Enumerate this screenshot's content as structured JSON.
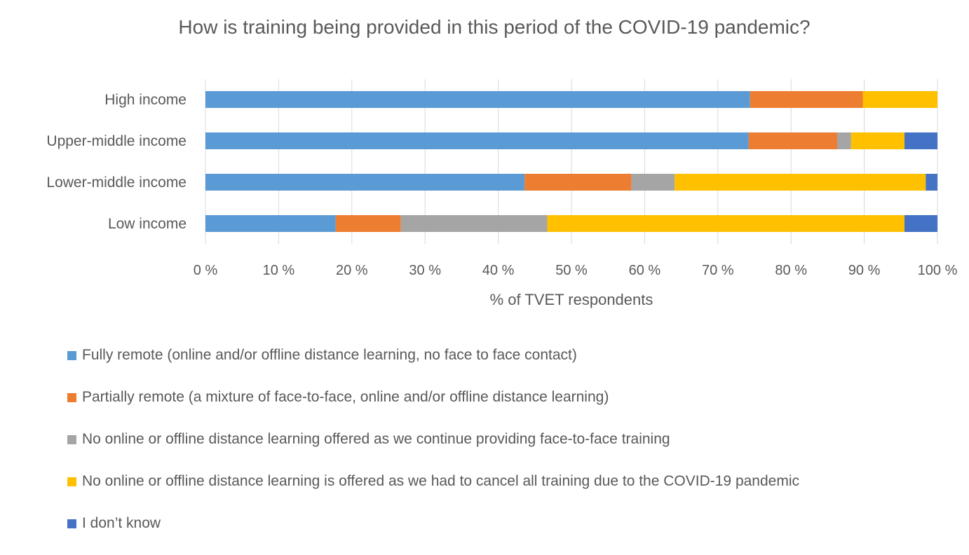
{
  "chart_data": {
    "type": "bar",
    "orientation": "horizontal",
    "stacked": true,
    "title": "How is training being provided in this period of the COVID-19 pandemic?",
    "xlabel": "% of TVET respondents",
    "ylabel": "",
    "xlim": [
      0,
      100
    ],
    "xticks": [
      "0 %",
      "10 %",
      "20 %",
      "30 %",
      "40 %",
      "50 %",
      "60 %",
      "70 %",
      "80 %",
      "90 %",
      "100 %"
    ],
    "categories": [
      "High income",
      "Upper-middle income",
      "Lower-middle income",
      "Low income"
    ],
    "series": [
      {
        "name": "Fully remote (online and/or offline distance learning, no face to face contact)",
        "color": "#5B9BD5",
        "values": [
          74.4,
          74.2,
          43.6,
          17.8
        ]
      },
      {
        "name": "Partially remote (a mixture of face-to-face, online and/or offline distance learning)",
        "color": "#ED7D31",
        "values": [
          15.4,
          12.1,
          14.6,
          8.9
        ]
      },
      {
        "name": "No online or offline distance learning offered as we continue providing face-to-face training",
        "color": "#A5A5A5",
        "values": [
          0,
          1.9,
          5.9,
          20.0
        ]
      },
      {
        "name": "No online or offline distance learning is offered as we had to cancel all training due to the COVID-19 pandemic",
        "color": "#FFC000",
        "values": [
          10.2,
          7.3,
          34.3,
          48.8
        ]
      },
      {
        "name": "I don’t know",
        "color": "#4472C4",
        "values": [
          0,
          4.5,
          1.6,
          4.5
        ]
      }
    ],
    "grid": true,
    "legend_position": "bottom"
  }
}
